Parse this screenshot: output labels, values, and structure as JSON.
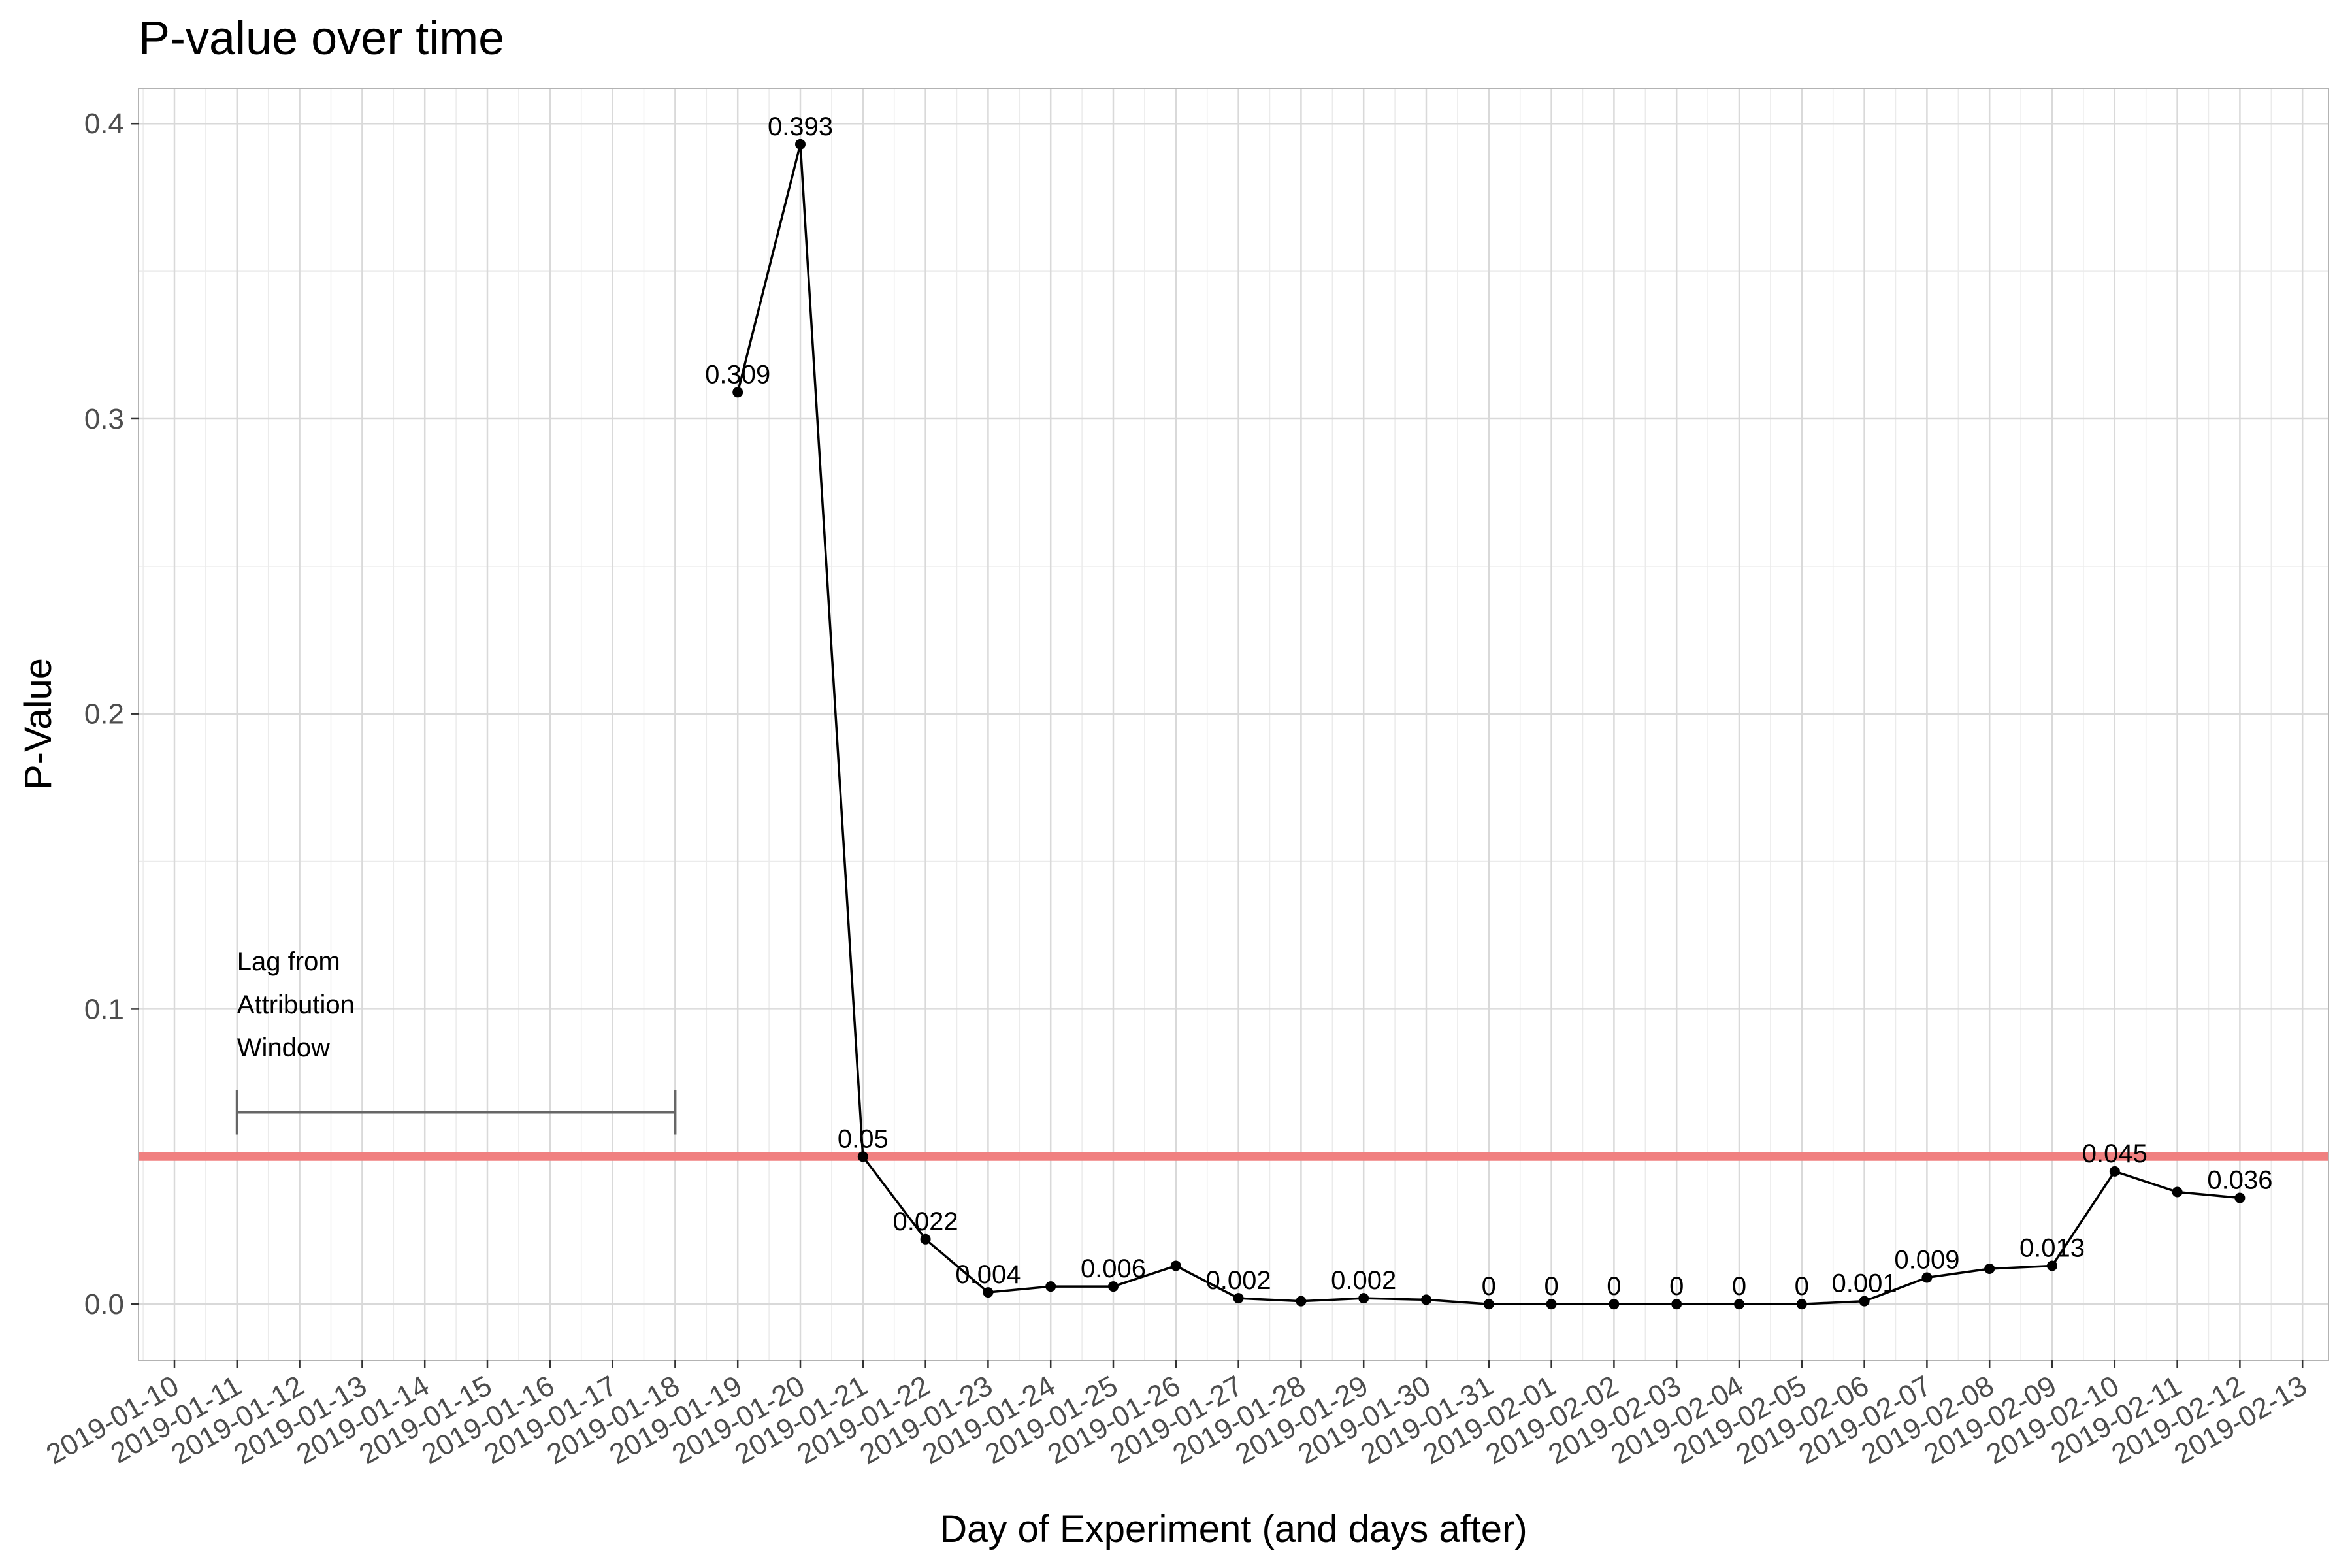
{
  "chart_data": {
    "type": "line",
    "title": "P-value over time",
    "xlabel": "Day of Experiment (and days after)",
    "ylabel": "P-Value",
    "xlim": [
      "2019-01-09",
      "2019-02-13"
    ],
    "ylim": [
      -0.019,
      0.412
    ],
    "y_ticks": [
      0.0,
      0.1,
      0.2,
      0.3,
      0.4
    ],
    "y_tick_labels": [
      "0.0",
      "0.1",
      "0.2",
      "0.3",
      "0.4"
    ],
    "x_tick_labels": [
      "2019-01-10",
      "2019-01-11",
      "2019-01-12",
      "2019-01-13",
      "2019-01-14",
      "2019-01-15",
      "2019-01-16",
      "2019-01-17",
      "2019-01-18",
      "2019-01-19",
      "2019-01-20",
      "2019-01-21",
      "2019-01-22",
      "2019-01-23",
      "2019-01-24",
      "2019-01-25",
      "2019-01-26",
      "2019-01-27",
      "2019-01-28",
      "2019-01-29",
      "2019-01-30",
      "2019-01-31",
      "2019-02-01",
      "2019-02-02",
      "2019-02-03",
      "2019-02-04",
      "2019-02-05",
      "2019-02-06",
      "2019-02-07",
      "2019-02-08",
      "2019-02-09",
      "2019-02-10",
      "2019-02-11",
      "2019-02-12",
      "2019-02-13"
    ],
    "grid": true,
    "series": [
      {
        "points": [
          {
            "x": "2019-01-19",
            "y": 0.309,
            "label": "0.309"
          },
          {
            "x": "2019-01-20",
            "y": 0.393,
            "label": "0.393"
          },
          {
            "x": "2019-01-21",
            "y": 0.05,
            "label": "0.05"
          },
          {
            "x": "2019-01-22",
            "y": 0.022,
            "label": "0.022"
          },
          {
            "x": "2019-01-23",
            "y": 0.004,
            "label": "0.004"
          },
          {
            "x": "2019-01-24",
            "y": 0.006,
            "label": ""
          },
          {
            "x": "2019-01-25",
            "y": 0.006,
            "label": "0.006"
          },
          {
            "x": "2019-01-26",
            "y": 0.013,
            "label": ""
          },
          {
            "x": "2019-01-27",
            "y": 0.002,
            "label": "0.002"
          },
          {
            "x": "2019-01-28",
            "y": 0.001,
            "label": ""
          },
          {
            "x": "2019-01-29",
            "y": 0.002,
            "label": "0.002"
          },
          {
            "x": "2019-01-30",
            "y": 0.0015,
            "label": ""
          },
          {
            "x": "2019-01-31",
            "y": 0.0,
            "label": "0"
          },
          {
            "x": "2019-02-01",
            "y": 0.0,
            "label": "0"
          },
          {
            "x": "2019-02-02",
            "y": 0.0,
            "label": "0"
          },
          {
            "x": "2019-02-03",
            "y": 0.0,
            "label": "0"
          },
          {
            "x": "2019-02-04",
            "y": 0.0,
            "label": "0"
          },
          {
            "x": "2019-02-05",
            "y": 0.0,
            "label": "0"
          },
          {
            "x": "2019-02-06",
            "y": 0.001,
            "label": "0.001"
          },
          {
            "x": "2019-02-07",
            "y": 0.009,
            "label": "0.009"
          },
          {
            "x": "2019-02-08",
            "y": 0.012,
            "label": ""
          },
          {
            "x": "2019-02-09",
            "y": 0.013,
            "label": "0.013"
          },
          {
            "x": "2019-02-10",
            "y": 0.045,
            "label": "0.045"
          },
          {
            "x": "2019-02-11",
            "y": 0.038,
            "label": ""
          },
          {
            "x": "2019-02-12",
            "y": 0.036,
            "label": "0.036"
          }
        ],
        "color": "#000000"
      }
    ],
    "threshold_line": {
      "y": 0.05,
      "color": "#f08080"
    },
    "annotation": {
      "lines": [
        "Lag from",
        "Attribution",
        "Window"
      ],
      "range": [
        "2019-01-11",
        "2019-01-18"
      ],
      "y": 0.065,
      "color": "#666666"
    }
  }
}
